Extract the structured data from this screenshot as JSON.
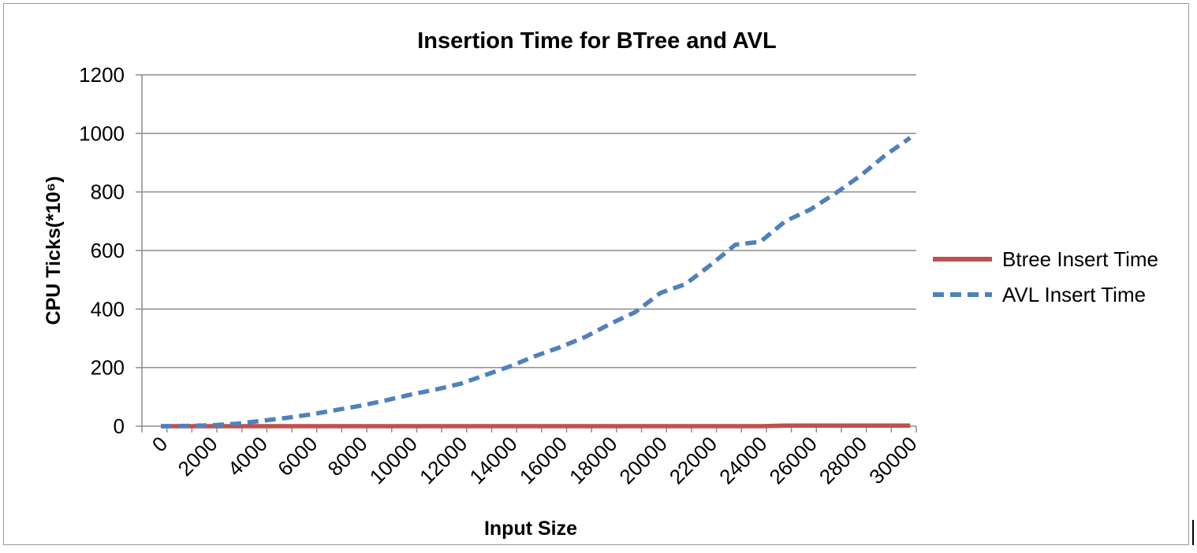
{
  "chart_data": {
    "type": "line",
    "title": "Insertion Time for BTree and AVL",
    "xlabel": "Input Size",
    "ylabel": "CPU Ticks(*10⁶)",
    "ylim": [
      0,
      1200
    ],
    "yticks": [
      "0",
      "200",
      "400",
      "600",
      "800",
      "1000",
      "1200"
    ],
    "x": [
      0,
      1000,
      2000,
      3000,
      4000,
      5000,
      6000,
      7000,
      8000,
      9000,
      10000,
      11000,
      12000,
      13000,
      14000,
      15000,
      16000,
      17000,
      18000,
      19000,
      20000,
      21000,
      22000,
      23000,
      24000,
      25000,
      26000,
      27000,
      28000,
      29000,
      30000
    ],
    "xticks": [
      "0",
      "2000",
      "4000",
      "6000",
      "8000",
      "10000",
      "12000",
      "14000",
      "16000",
      "18000",
      "20000",
      "22000",
      "24000",
      "26000",
      "28000",
      "30000"
    ],
    "grid": true,
    "legend_position": "right",
    "series": [
      {
        "name": "Btree Insert Time",
        "color": "#c0504d",
        "dash": "solid",
        "values": [
          0,
          0,
          0,
          0,
          0,
          0,
          0,
          0,
          0,
          0,
          0,
          0,
          0,
          0,
          0,
          0,
          0,
          0,
          0,
          0,
          0,
          0,
          0,
          0,
          0,
          2,
          2,
          2,
          2,
          2,
          2
        ]
      },
      {
        "name": "AVL Insert Time",
        "color": "#4f81bd",
        "dash": "dashed",
        "values": [
          0,
          1,
          3,
          8,
          18,
          28,
          40,
          55,
          70,
          88,
          108,
          125,
          145,
          175,
          205,
          240,
          270,
          305,
          350,
          390,
          455,
          485,
          550,
          620,
          630,
          700,
          740,
          795,
          855,
          925,
          985
        ]
      }
    ]
  }
}
